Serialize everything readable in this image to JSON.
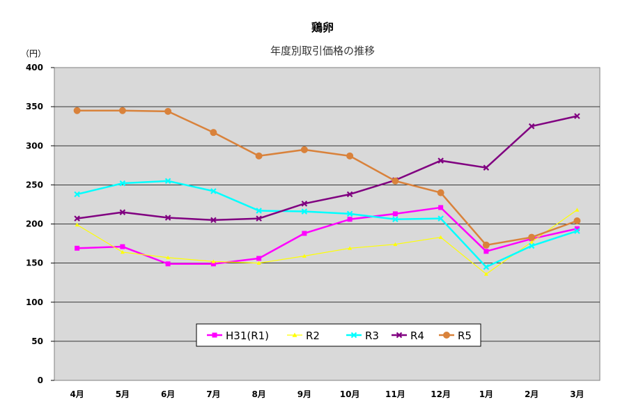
{
  "chart_data": {
    "type": "line",
    "title": "鶏卵",
    "subtitle": "年度別取引価格の推移",
    "ylabel": "（円）",
    "ylim": [
      0,
      400
    ],
    "yticks": [
      0,
      50,
      100,
      150,
      200,
      250,
      300,
      350,
      400
    ],
    "grid": true,
    "legend_position": "bottom-center",
    "categories": [
      "4月",
      "5月",
      "6月",
      "7月",
      "8月",
      "9月",
      "10月",
      "11月",
      "12月",
      "1月",
      "2月",
      "3月"
    ],
    "series": [
      {
        "name": "H31(R1)",
        "color": "#ff00ff",
        "marker": "square",
        "values": [
          169,
          171,
          149,
          149,
          156,
          188,
          206,
          213,
          221,
          165,
          181,
          194
        ]
      },
      {
        "name": "R2",
        "color": "#ffff00",
        "marker": "triangle",
        "values": [
          199,
          164,
          157,
          152,
          150,
          159,
          169,
          174,
          183,
          136,
          177,
          218
        ]
      },
      {
        "name": "R3",
        "color": "#00ffff",
        "marker": "x",
        "values": [
          238,
          252,
          255,
          242,
          217,
          216,
          213,
          206,
          207,
          145,
          172,
          191
        ]
      },
      {
        "name": "R4",
        "color": "#800080",
        "marker": "x",
        "values": [
          207,
          215,
          208,
          205,
          207,
          226,
          238,
          256,
          281,
          272,
          325,
          338
        ]
      },
      {
        "name": "R5",
        "color": "#d9823b",
        "marker": "circle",
        "values": [
          345,
          345,
          344,
          317,
          287,
          295,
          287,
          255,
          240,
          173,
          183,
          204
        ]
      }
    ]
  }
}
